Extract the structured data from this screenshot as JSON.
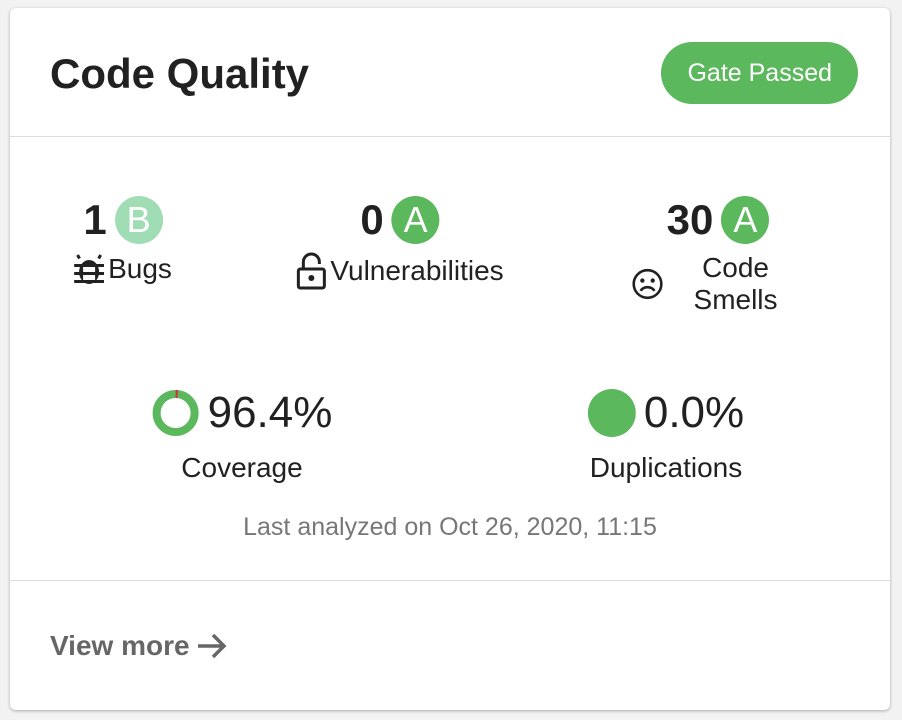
{
  "header": {
    "title": "Code Quality",
    "gate_status": "Gate Passed"
  },
  "metrics": [
    {
      "value": "1",
      "rating": "B",
      "rating_color": "#a0dcb4",
      "label": "Bugs",
      "icon": "bug-icon"
    },
    {
      "value": "0",
      "rating": "A",
      "rating_color": "#5cb85c",
      "label": "Vulnerabilities",
      "icon": "lock-icon"
    },
    {
      "value": "30",
      "rating": "A",
      "rating_color": "#5cb85c",
      "label": "Code Smells",
      "icon": "sad-face-icon"
    }
  ],
  "coverage": {
    "value": "96.4%",
    "percent": 96.4,
    "label": "Coverage"
  },
  "duplications": {
    "value": "0.0%",
    "label": "Duplications"
  },
  "last_analyzed": "Last analyzed on Oct 26, 2020, 11:15",
  "footer": {
    "view_more": "View more"
  },
  "colors": {
    "good": "#5cb85c",
    "bad": "#d4333f"
  }
}
